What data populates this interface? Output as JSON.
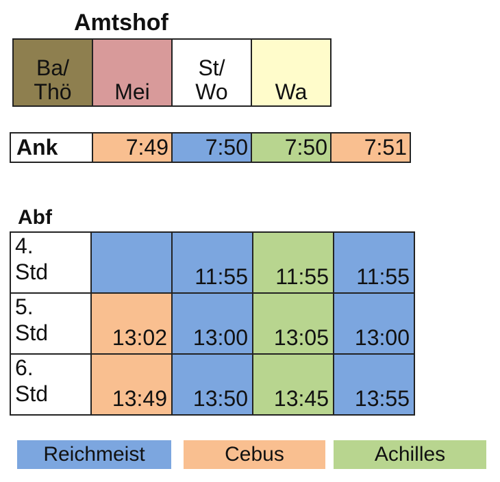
{
  "colors": {
    "olive": "#8E7F4F",
    "rose": "#D89A9A",
    "white": "#FFFFFF",
    "cream": "#FFFCCB",
    "orange": "#F9BF90",
    "blue": "#7CA6DF",
    "green": "#B8D58F"
  },
  "amtshof": {
    "title": "Amtshof",
    "codes": [
      {
        "label": "Ba/\nThö",
        "color": "#8E7F4F"
      },
      {
        "label": "Mei",
        "color": "#D89A9A"
      },
      {
        "label": "St/\nWo",
        "color": "#FFFFFF"
      },
      {
        "label": "Wa",
        "color": "#FFFCCB"
      }
    ]
  },
  "ank": {
    "label": "Ank",
    "times": [
      {
        "time": "7:49",
        "color": "#F9BF90"
      },
      {
        "time": "7:50",
        "color": "#7CA6DF"
      },
      {
        "time": "7:50",
        "color": "#B8D58F"
      },
      {
        "time": "7:51",
        "color": "#F9BF90"
      }
    ]
  },
  "abf": {
    "title": "Abf",
    "rows": [
      {
        "label": "4.\nStd",
        "cells": [
          {
            "time": "",
            "color": "#7CA6DF"
          },
          {
            "time": "11:55",
            "color": "#7CA6DF"
          },
          {
            "time": "11:55",
            "color": "#B8D58F"
          },
          {
            "time": "11:55",
            "color": "#7CA6DF"
          }
        ]
      },
      {
        "label": "5.\nStd",
        "cells": [
          {
            "time": "13:02",
            "color": "#F9BF90"
          },
          {
            "time": "13:00",
            "color": "#7CA6DF"
          },
          {
            "time": "13:05",
            "color": "#B8D58F"
          },
          {
            "time": "13:00",
            "color": "#7CA6DF"
          }
        ]
      },
      {
        "label": "6.\nStd",
        "cells": [
          {
            "time": "13:49",
            "color": "#F9BF90"
          },
          {
            "time": "13:50",
            "color": "#7CA6DF"
          },
          {
            "time": "13:45",
            "color": "#B8D58F"
          },
          {
            "time": "13:55",
            "color": "#7CA6DF"
          }
        ]
      }
    ]
  },
  "legend": [
    {
      "label": "Reichmeist",
      "color": "#7CA6DF"
    },
    {
      "label": "Cebus",
      "color": "#F9BF90"
    },
    {
      "label": "Achilles",
      "color": "#B8D58F"
    }
  ]
}
